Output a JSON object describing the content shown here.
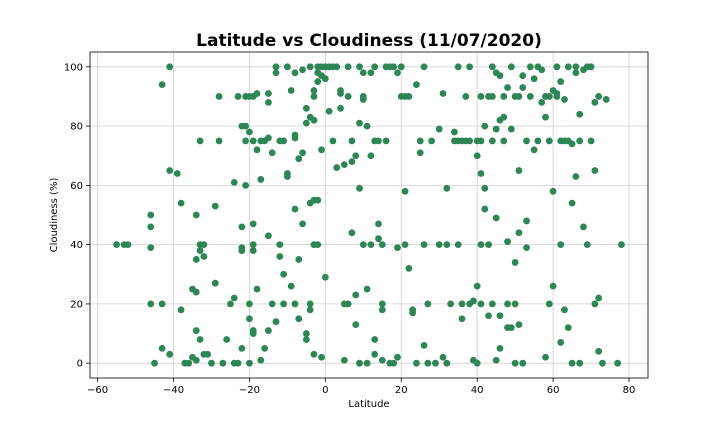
{
  "chart_data": {
    "type": "scatter",
    "title": "Latitude vs Cloudiness (11/07/2020)",
    "xlabel": "Latitude",
    "ylabel": "Cloudiness (%)",
    "xlim": [
      -62,
      85
    ],
    "ylim": [
      -5,
      105
    ],
    "xticks": [
      -60,
      -40,
      -20,
      0,
      20,
      40,
      60,
      80
    ],
    "yticks": [
      0,
      20,
      40,
      60,
      80,
      100
    ],
    "grid": true,
    "marker_color": "#2e8555",
    "points": [
      [
        -55,
        40
      ],
      [
        -53,
        40
      ],
      [
        -52,
        40
      ],
      [
        -46,
        50
      ],
      [
        -46,
        46
      ],
      [
        -46,
        39
      ],
      [
        -46,
        20
      ],
      [
        -45,
        0
      ],
      [
        -43,
        94
      ],
      [
        -43,
        20
      ],
      [
        -43,
        5
      ],
      [
        -41,
        100
      ],
      [
        -41,
        65
      ],
      [
        -41,
        3
      ],
      [
        -39,
        64
      ],
      [
        -38,
        54
      ],
      [
        -38,
        18
      ],
      [
        -37,
        0
      ],
      [
        -36,
        0
      ],
      [
        -35,
        2
      ],
      [
        -35,
        25
      ],
      [
        -34,
        24
      ],
      [
        -34,
        35
      ],
      [
        -34,
        50
      ],
      [
        -34,
        11
      ],
      [
        -34,
        1
      ],
      [
        -33,
        75
      ],
      [
        -33,
        40
      ],
      [
        -33,
        38
      ],
      [
        -33,
        8
      ],
      [
        -32,
        40
      ],
      [
        -32,
        36
      ],
      [
        -32,
        3
      ],
      [
        -31,
        3
      ],
      [
        -30,
        0
      ],
      [
        -29,
        27
      ],
      [
        -29,
        53
      ],
      [
        -28,
        75
      ],
      [
        -28,
        90
      ],
      [
        -27,
        0
      ],
      [
        -26,
        8
      ],
      [
        -25,
        20
      ],
      [
        -24,
        0
      ],
      [
        -24,
        61
      ],
      [
        -24,
        22
      ],
      [
        -23,
        90
      ],
      [
        -23,
        0
      ],
      [
        -22,
        80
      ],
      [
        -22,
        46
      ],
      [
        -22,
        38
      ],
      [
        -22,
        39
      ],
      [
        -22,
        5
      ],
      [
        -21,
        80
      ],
      [
        -21,
        75
      ],
      [
        -21,
        60
      ],
      [
        -21,
        90
      ],
      [
        -20,
        90
      ],
      [
        -20,
        78
      ],
      [
        -20,
        20
      ],
      [
        -20,
        15
      ],
      [
        -20,
        0
      ],
      [
        -19,
        90
      ],
      [
        -19,
        75
      ],
      [
        -19,
        40
      ],
      [
        -19,
        47
      ],
      [
        -19,
        38
      ],
      [
        -19,
        10
      ],
      [
        -19,
        11
      ],
      [
        -18,
        91
      ],
      [
        -18,
        72
      ],
      [
        -18,
        25
      ],
      [
        -17,
        75
      ],
      [
        -17,
        62
      ],
      [
        -17,
        1
      ],
      [
        -16,
        75
      ],
      [
        -16,
        5
      ],
      [
        -15,
        91
      ],
      [
        -15,
        88
      ],
      [
        -15,
        76
      ],
      [
        -15,
        43
      ],
      [
        -15,
        11
      ],
      [
        -14,
        71
      ],
      [
        -14,
        20
      ],
      [
        -13,
        98
      ],
      [
        -13,
        100
      ],
      [
        -13,
        14
      ],
      [
        -12,
        75
      ],
      [
        -12,
        36
      ],
      [
        -12,
        40
      ],
      [
        -11,
        75
      ],
      [
        -11,
        30
      ],
      [
        -11,
        20
      ],
      [
        -10,
        100
      ],
      [
        -10,
        64
      ],
      [
        -10,
        63
      ],
      [
        -9,
        92
      ],
      [
        -9,
        26
      ],
      [
        -8,
        98
      ],
      [
        -8,
        77
      ],
      [
        -8,
        76
      ],
      [
        -8,
        52
      ],
      [
        -8,
        20
      ],
      [
        -7,
        69
      ],
      [
        -7,
        35
      ],
      [
        -7,
        15
      ],
      [
        -6,
        71
      ],
      [
        -6,
        47
      ],
      [
        -6,
        99
      ],
      [
        -5,
        86
      ],
      [
        -5,
        81
      ],
      [
        -5,
        10
      ],
      [
        -5,
        8
      ],
      [
        -4,
        83
      ],
      [
        -4,
        54
      ],
      [
        -4,
        20
      ],
      [
        -4,
        18
      ],
      [
        -4,
        100
      ],
      [
        -3,
        92
      ],
      [
        -3,
        90
      ],
      [
        -3,
        82
      ],
      [
        -3,
        55
      ],
      [
        -3,
        40
      ],
      [
        -3,
        3
      ],
      [
        -2,
        100
      ],
      [
        -2,
        98
      ],
      [
        -2,
        95
      ],
      [
        -2,
        55
      ],
      [
        -2,
        40
      ],
      [
        -1,
        97
      ],
      [
        -1,
        100
      ],
      [
        -1,
        72
      ],
      [
        -1,
        2
      ],
      [
        0,
        100
      ],
      [
        0,
        96
      ],
      [
        0,
        29
      ],
      [
        1,
        100
      ],
      [
        1,
        85
      ],
      [
        2,
        100
      ],
      [
        2,
        75
      ],
      [
        3,
        100
      ],
      [
        3,
        66
      ],
      [
        4,
        92
      ],
      [
        4,
        91
      ],
      [
        4,
        86
      ],
      [
        5,
        67
      ],
      [
        5,
        20
      ],
      [
        5,
        1
      ],
      [
        6,
        100
      ],
      [
        6,
        90
      ],
      [
        6,
        20
      ],
      [
        7,
        68
      ],
      [
        7,
        44
      ],
      [
        7,
        75
      ],
      [
        8,
        70
      ],
      [
        8,
        23
      ],
      [
        8,
        13
      ],
      [
        9,
        100
      ],
      [
        9,
        81
      ],
      [
        9,
        59
      ],
      [
        9,
        0
      ],
      [
        10,
        89
      ],
      [
        10,
        90
      ],
      [
        10,
        98
      ],
      [
        10,
        40
      ],
      [
        11,
        80
      ],
      [
        11,
        25
      ],
      [
        11,
        0
      ],
      [
        12,
        98
      ],
      [
        12,
        70
      ],
      [
        12,
        40
      ],
      [
        13,
        75
      ],
      [
        13,
        100
      ],
      [
        13,
        8
      ],
      [
        13,
        3
      ],
      [
        14,
        75
      ],
      [
        14,
        47
      ],
      [
        14,
        42
      ],
      [
        15,
        40
      ],
      [
        15,
        20
      ],
      [
        15,
        18
      ],
      [
        15,
        1
      ],
      [
        16,
        100
      ],
      [
        16,
        75
      ],
      [
        17,
        100
      ],
      [
        17,
        0
      ],
      [
        18,
        100
      ],
      [
        18,
        0
      ],
      [
        19,
        98
      ],
      [
        19,
        39
      ],
      [
        19,
        2
      ],
      [
        20,
        90
      ],
      [
        20,
        100
      ],
      [
        21,
        58
      ],
      [
        21,
        90
      ],
      [
        21,
        40
      ],
      [
        22,
        90
      ],
      [
        22,
        32
      ],
      [
        23,
        17
      ],
      [
        23,
        18
      ],
      [
        24,
        94
      ],
      [
        24,
        0
      ],
      [
        25,
        71
      ],
      [
        25,
        75
      ],
      [
        26,
        40
      ],
      [
        26,
        100
      ],
      [
        26,
        6
      ],
      [
        27,
        20
      ],
      [
        27,
        0
      ],
      [
        28,
        75
      ],
      [
        29,
        0
      ],
      [
        30,
        79
      ],
      [
        30,
        40
      ],
      [
        31,
        2
      ],
      [
        31,
        91
      ],
      [
        32,
        59
      ],
      [
        32,
        40
      ],
      [
        32,
        0
      ],
      [
        33,
        20
      ],
      [
        34,
        78
      ],
      [
        34,
        75
      ],
      [
        35,
        100
      ],
      [
        35,
        75
      ],
      [
        35,
        40
      ],
      [
        36,
        75
      ],
      [
        36,
        20
      ],
      [
        36,
        15
      ],
      [
        37,
        90
      ],
      [
        37,
        75
      ],
      [
        38,
        100
      ],
      [
        38,
        75
      ],
      [
        38,
        20
      ],
      [
        39,
        21
      ],
      [
        39,
        1
      ],
      [
        40,
        75
      ],
      [
        40,
        70
      ],
      [
        40,
        26
      ],
      [
        40,
        0
      ],
      [
        41,
        64
      ],
      [
        41,
        90
      ],
      [
        41,
        75
      ],
      [
        41,
        40
      ],
      [
        41,
        20
      ],
      [
        42,
        80
      ],
      [
        42,
        52
      ],
      [
        42,
        59
      ],
      [
        43,
        90
      ],
      [
        43,
        40
      ],
      [
        43,
        16
      ],
      [
        44,
        100
      ],
      [
        44,
        90
      ],
      [
        44,
        75
      ],
      [
        44,
        20
      ],
      [
        45,
        98
      ],
      [
        45,
        79
      ],
      [
        45,
        49
      ],
      [
        45,
        1
      ],
      [
        46,
        97
      ],
      [
        46,
        82
      ],
      [
        46,
        16
      ],
      [
        46,
        5
      ],
      [
        47,
        90
      ],
      [
        47,
        83
      ],
      [
        47,
        75
      ],
      [
        48,
        93
      ],
      [
        48,
        41
      ],
      [
        48,
        20
      ],
      [
        48,
        12
      ],
      [
        49,
        100
      ],
      [
        49,
        79
      ],
      [
        49,
        12
      ],
      [
        50,
        90
      ],
      [
        50,
        34
      ],
      [
        50,
        20
      ],
      [
        50,
        0
      ],
      [
        51,
        90
      ],
      [
        51,
        65
      ],
      [
        51,
        44
      ],
      [
        51,
        13
      ],
      [
        52,
        93
      ],
      [
        52,
        97
      ],
      [
        52,
        0
      ],
      [
        53,
        39
      ],
      [
        53,
        48
      ],
      [
        53,
        75
      ],
      [
        54,
        100
      ],
      [
        54,
        90
      ],
      [
        55,
        96
      ],
      [
        55,
        72
      ],
      [
        56,
        75
      ],
      [
        56,
        100
      ],
      [
        57,
        88
      ],
      [
        57,
        99
      ],
      [
        58,
        90
      ],
      [
        58,
        83
      ],
      [
        58,
        2
      ],
      [
        59,
        75
      ],
      [
        59,
        20
      ],
      [
        59,
        90
      ],
      [
        60,
        92
      ],
      [
        60,
        26
      ],
      [
        60,
        58
      ],
      [
        61,
        100
      ],
      [
        61,
        91
      ],
      [
        61,
        90
      ],
      [
        62,
        95
      ],
      [
        62,
        75
      ],
      [
        62,
        40
      ],
      [
        62,
        7
      ],
      [
        63,
        89
      ],
      [
        63,
        75
      ],
      [
        63,
        18
      ],
      [
        64,
        100
      ],
      [
        64,
        75
      ],
      [
        64,
        12
      ],
      [
        65,
        74
      ],
      [
        65,
        54
      ],
      [
        65,
        0
      ],
      [
        66,
        63
      ],
      [
        66,
        100
      ],
      [
        66,
        98
      ],
      [
        67,
        75
      ],
      [
        67,
        84
      ],
      [
        67,
        0
      ],
      [
        68,
        46
      ],
      [
        68,
        99
      ],
      [
        69,
        40
      ],
      [
        69,
        100
      ],
      [
        70,
        100
      ],
      [
        70,
        75
      ],
      [
        71,
        65
      ],
      [
        71,
        20
      ],
      [
        71,
        88
      ],
      [
        72,
        90
      ],
      [
        72,
        22
      ],
      [
        72,
        4
      ],
      [
        73,
        0
      ],
      [
        74,
        89
      ],
      [
        77,
        0
      ],
      [
        78,
        40
      ]
    ]
  }
}
